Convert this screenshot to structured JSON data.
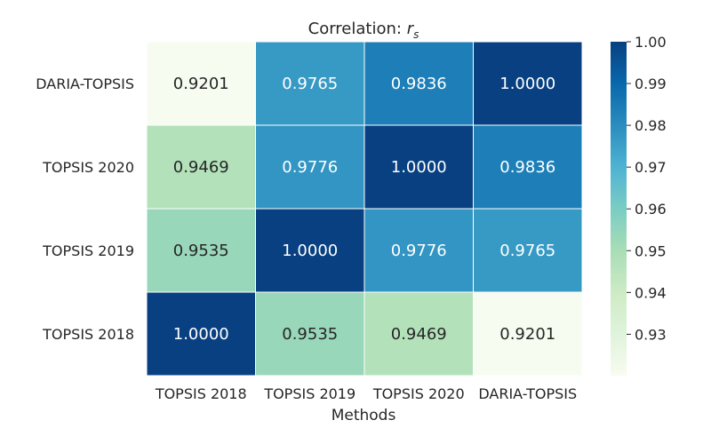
{
  "chart_data": {
    "type": "heatmap",
    "title": "Correlation: ",
    "title_symbol": "r",
    "title_subscript": "s",
    "xlabel": "Methods",
    "x_categories": [
      "TOPSIS 2018",
      "TOPSIS 2019",
      "TOPSIS 2020",
      "DARIA-TOPSIS"
    ],
    "y_categories": [
      "DARIA-TOPSIS",
      "TOPSIS 2020",
      "TOPSIS 2019",
      "TOPSIS 2018"
    ],
    "values": [
      [
        0.9201,
        0.9765,
        0.9836,
        1.0
      ],
      [
        0.9469,
        0.9776,
        1.0,
        0.9836
      ],
      [
        0.9535,
        1.0,
        0.9776,
        0.9765
      ],
      [
        1.0,
        0.9535,
        0.9469,
        0.9201
      ]
    ],
    "cell_labels": [
      [
        "0.9201",
        "0.9765",
        "0.9836",
        "1.0000"
      ],
      [
        "0.9469",
        "0.9776",
        "1.0000",
        "0.9836"
      ],
      [
        "0.9535",
        "1.0000",
        "0.9776",
        "0.9765"
      ],
      [
        "1.0000",
        "0.9535",
        "0.9469",
        "0.9201"
      ]
    ],
    "colormap": "GnBu",
    "vmin": 0.9201,
    "vmax": 1.0,
    "colorbar_ticks": [
      0.93,
      0.94,
      0.95,
      0.96,
      0.97,
      0.98,
      0.99,
      1.0
    ],
    "colorbar_tick_labels": [
      "0.93",
      "0.94",
      "0.95",
      "0.96",
      "0.97",
      "0.98",
      "0.99",
      "1.00"
    ]
  }
}
